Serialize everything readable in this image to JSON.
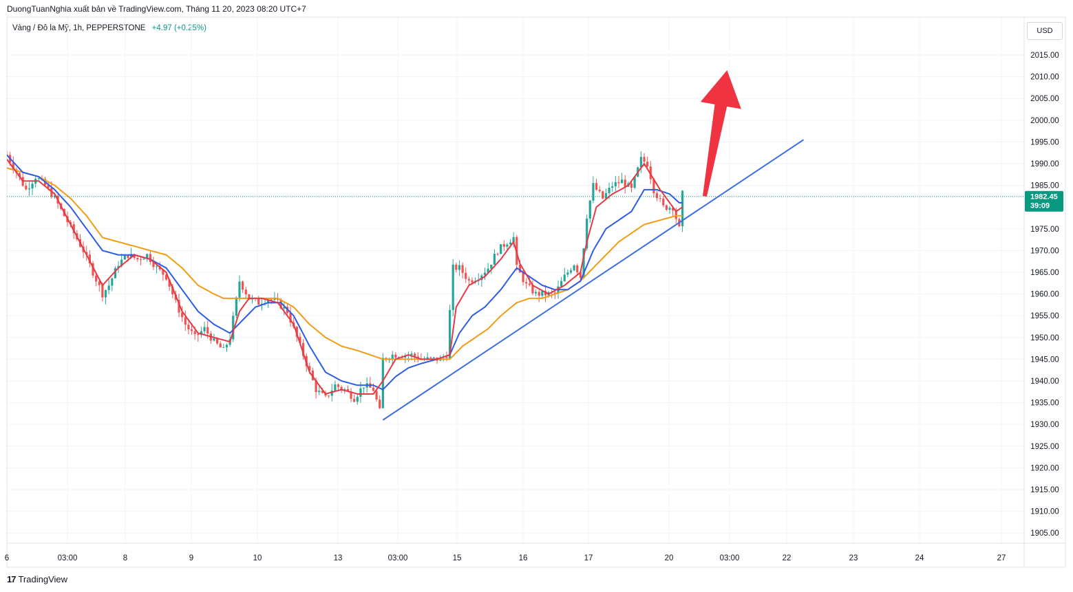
{
  "header": {
    "publisher_text": "DuongTuanNghia xuất bản về TradingView.com, Tháng 11 20, 2023 08:20 UTC+7"
  },
  "symbol": {
    "description": "Vàng / Đô la Mỹ, 1h, PEPPERSTONE",
    "change": "+4.97 (+0.25%)"
  },
  "currency": "USD",
  "footer": {
    "brand": "TradingView",
    "logo_icon": "tradingview-logo-icon"
  },
  "colors": {
    "up": "#26a69a",
    "down": "#ef5350",
    "ma_fast": "#e53845",
    "ma_mid": "#2c5ae9",
    "ma_slow": "#f39c12",
    "trendline": "#3b6ee0",
    "arrow": "#ef3340",
    "price_badge": "#089981"
  },
  "chart_data": {
    "type": "candlestick",
    "y_ticks": [
      "2015.00",
      "2010.00",
      "2005.00",
      "2000.00",
      "1995.00",
      "1990.00",
      "1985.00",
      "1975.00",
      "1970.00",
      "1965.00",
      "1960.00",
      "1955.00",
      "1950.00",
      "1945.00",
      "1940.00",
      "1935.00",
      "1930.00",
      "1925.00",
      "1920.00",
      "1915.00",
      "1910.00",
      "1905.00"
    ],
    "ylim": [
      1902,
      2022
    ],
    "x_ticks": [
      "6",
      "03:00",
      "8",
      "9",
      "10",
      "13",
      "03:00",
      "15",
      "16",
      "17",
      "20",
      "03:00",
      "22",
      "23",
      "24",
      "27"
    ],
    "last_price": "1982.45",
    "countdown": "39:09",
    "price_path": [
      [
        0,
        1992
      ],
      [
        3,
        1988
      ],
      [
        6,
        1984
      ],
      [
        9,
        1987
      ],
      [
        12,
        1985
      ],
      [
        15,
        1982
      ],
      [
        18,
        1978
      ],
      [
        21,
        1974
      ],
      [
        24,
        1970
      ],
      [
        27,
        1965
      ],
      [
        30,
        1960
      ],
      [
        32,
        1962
      ],
      [
        35,
        1967
      ],
      [
        38,
        1969
      ],
      [
        41,
        1968
      ],
      [
        44,
        1969
      ],
      [
        47,
        1966
      ],
      [
        50,
        1964
      ],
      [
        53,
        1958
      ],
      [
        56,
        1953
      ],
      [
        59,
        1950
      ],
      [
        62,
        1952
      ],
      [
        65,
        1949
      ],
      [
        68,
        1947
      ],
      [
        70,
        1950
      ],
      [
        73,
        1963
      ],
      [
        76,
        1959
      ],
      [
        79,
        1958
      ],
      [
        82,
        1959
      ],
      [
        85,
        1958
      ],
      [
        88,
        1956
      ],
      [
        91,
        1950
      ],
      [
        94,
        1944
      ],
      [
        97,
        1938
      ],
      [
        100,
        1936
      ],
      [
        103,
        1939
      ],
      [
        106,
        1938
      ],
      [
        109,
        1936
      ],
      [
        112,
        1939
      ],
      [
        115,
        1938
      ],
      [
        117,
        1933
      ],
      [
        118,
        1945
      ],
      [
        121,
        1946
      ],
      [
        124,
        1946
      ],
      [
        127,
        1946
      ],
      [
        130,
        1945
      ],
      [
        133,
        1945
      ],
      [
        136,
        1945
      ],
      [
        138,
        1946
      ],
      [
        140,
        1966
      ],
      [
        142,
        1966
      ],
      [
        145,
        1963
      ],
      [
        148,
        1964
      ],
      [
        151,
        1966
      ],
      [
        154,
        1970
      ],
      [
        157,
        1972
      ],
      [
        159,
        1973
      ],
      [
        160,
        1966
      ],
      [
        163,
        1962
      ],
      [
        166,
        1960
      ],
      [
        169,
        1960
      ],
      [
        172,
        1960
      ],
      [
        175,
        1964
      ],
      [
        178,
        1967
      ],
      [
        180,
        1964
      ],
      [
        182,
        1978
      ],
      [
        184,
        1985
      ],
      [
        187,
        1982
      ],
      [
        190,
        1985
      ],
      [
        193,
        1986
      ],
      [
        196,
        1984
      ],
      [
        199,
        1991
      ],
      [
        201,
        1990
      ],
      [
        203,
        1984
      ],
      [
        206,
        1980
      ],
      [
        209,
        1980
      ],
      [
        211,
        1975
      ],
      [
        212,
        1983
      ]
    ],
    "ma_fast": [
      [
        0,
        1991
      ],
      [
        5,
        1986
      ],
      [
        10,
        1986
      ],
      [
        15,
        1983
      ],
      [
        20,
        1976
      ],
      [
        25,
        1969
      ],
      [
        30,
        1962
      ],
      [
        35,
        1966
      ],
      [
        40,
        1969
      ],
      [
        45,
        1968
      ],
      [
        50,
        1965
      ],
      [
        55,
        1956
      ],
      [
        60,
        1951
      ],
      [
        65,
        1950
      ],
      [
        70,
        1949
      ],
      [
        73,
        1956
      ],
      [
        76,
        1959
      ],
      [
        80,
        1959
      ],
      [
        85,
        1958
      ],
      [
        90,
        1953
      ],
      [
        95,
        1942
      ],
      [
        100,
        1937
      ],
      [
        105,
        1938
      ],
      [
        110,
        1937
      ],
      [
        115,
        1937
      ],
      [
        118,
        1940
      ],
      [
        122,
        1945
      ],
      [
        126,
        1946
      ],
      [
        130,
        1945
      ],
      [
        135,
        1945
      ],
      [
        139,
        1946
      ],
      [
        141,
        1957
      ],
      [
        145,
        1962
      ],
      [
        150,
        1964
      ],
      [
        155,
        1968
      ],
      [
        159,
        1972
      ],
      [
        161,
        1967
      ],
      [
        165,
        1962
      ],
      [
        170,
        1960
      ],
      [
        175,
        1962
      ],
      [
        180,
        1965
      ],
      [
        182,
        1972
      ],
      [
        185,
        1980
      ],
      [
        190,
        1983
      ],
      [
        195,
        1985
      ],
      [
        200,
        1990
      ],
      [
        205,
        1984
      ],
      [
        210,
        1979
      ],
      [
        212,
        1980
      ]
    ],
    "ma_mid": [
      [
        0,
        1992
      ],
      [
        5,
        1988
      ],
      [
        10,
        1987
      ],
      [
        15,
        1984
      ],
      [
        20,
        1980
      ],
      [
        25,
        1975
      ],
      [
        30,
        1970
      ],
      [
        35,
        1969
      ],
      [
        40,
        1969
      ],
      [
        45,
        1968
      ],
      [
        50,
        1966
      ],
      [
        55,
        1961
      ],
      [
        60,
        1956
      ],
      [
        65,
        1953
      ],
      [
        70,
        1951
      ],
      [
        74,
        1954
      ],
      [
        78,
        1957
      ],
      [
        82,
        1958
      ],
      [
        86,
        1958
      ],
      [
        90,
        1955
      ],
      [
        95,
        1948
      ],
      [
        100,
        1942
      ],
      [
        105,
        1940
      ],
      [
        110,
        1939
      ],
      [
        115,
        1939
      ],
      [
        118,
        1938
      ],
      [
        122,
        1941
      ],
      [
        126,
        1943
      ],
      [
        130,
        1944
      ],
      [
        135,
        1945
      ],
      [
        139,
        1946
      ],
      [
        142,
        1951
      ],
      [
        146,
        1955
      ],
      [
        150,
        1957
      ],
      [
        155,
        1961
      ],
      [
        160,
        1966
      ],
      [
        164,
        1964
      ],
      [
        168,
        1962
      ],
      [
        172,
        1961
      ],
      [
        176,
        1961
      ],
      [
        180,
        1963
      ],
      [
        184,
        1970
      ],
      [
        188,
        1975
      ],
      [
        192,
        1977
      ],
      [
        196,
        1979
      ],
      [
        200,
        1984
      ],
      [
        204,
        1984
      ],
      [
        208,
        1983
      ],
      [
        211,
        1981
      ],
      [
        212,
        1981
      ]
    ],
    "ma_slow": [
      [
        0,
        1989
      ],
      [
        5,
        1988
      ],
      [
        10,
        1987
      ],
      [
        15,
        1985
      ],
      [
        20,
        1982
      ],
      [
        25,
        1978
      ],
      [
        30,
        1973
      ],
      [
        35,
        1972
      ],
      [
        40,
        1971
      ],
      [
        45,
        1970
      ],
      [
        50,
        1969
      ],
      [
        55,
        1966
      ],
      [
        60,
        1962
      ],
      [
        65,
        1960
      ],
      [
        68,
        1959
      ],
      [
        72,
        1959
      ],
      [
        76,
        1959
      ],
      [
        80,
        1959
      ],
      [
        85,
        1959
      ],
      [
        90,
        1957
      ],
      [
        95,
        1953
      ],
      [
        100,
        1950
      ],
      [
        105,
        1948
      ],
      [
        110,
        1947
      ],
      [
        114,
        1946
      ],
      [
        118,
        1945
      ],
      [
        122,
        1945
      ],
      [
        126,
        1945
      ],
      [
        130,
        1945
      ],
      [
        135,
        1945
      ],
      [
        139,
        1945
      ],
      [
        143,
        1948
      ],
      [
        147,
        1950
      ],
      [
        151,
        1952
      ],
      [
        155,
        1955
      ],
      [
        160,
        1958
      ],
      [
        164,
        1959
      ],
      [
        168,
        1959
      ],
      [
        172,
        1960
      ],
      [
        176,
        1961
      ],
      [
        180,
        1963
      ],
      [
        184,
        1966
      ],
      [
        188,
        1969
      ],
      [
        192,
        1972
      ],
      [
        196,
        1974
      ],
      [
        200,
        1976
      ],
      [
        205,
        1977
      ],
      [
        210,
        1978
      ],
      [
        212,
        1978
      ]
    ],
    "trendline": {
      "from": [
        118,
        1931
      ],
      "to": [
        250,
        1995.5
      ]
    },
    "arrow": {
      "tail": [
        219,
        1982.5
      ],
      "head": [
        226,
        2011.5
      ]
    }
  }
}
